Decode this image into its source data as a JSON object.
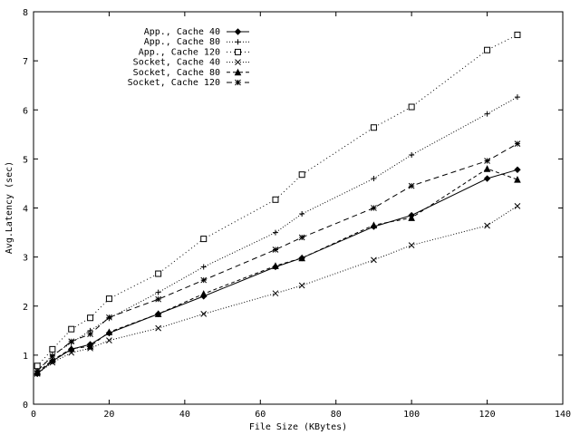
{
  "chart_data": {
    "type": "line",
    "title": "",
    "xlabel": "File Size (KBytes)",
    "ylabel": "Avg.Latency (sec)",
    "xlim": [
      0,
      140
    ],
    "ylim": [
      0,
      8
    ],
    "xticks": [
      0,
      20,
      40,
      60,
      80,
      100,
      120,
      140
    ],
    "yticks": [
      0,
      1,
      2,
      3,
      4,
      5,
      6,
      7,
      8
    ],
    "grid": false,
    "legend_position": "top-left",
    "series": [
      {
        "name": "App., Cache 40",
        "marker": "diamond",
        "dash": "solid",
        "x": [
          1,
          5,
          10,
          15,
          20,
          33,
          45,
          64,
          71,
          90,
          100,
          120,
          128
        ],
        "y": [
          0.62,
          0.88,
          1.12,
          1.22,
          1.45,
          1.84,
          2.2,
          2.8,
          2.98,
          3.62,
          3.85,
          4.6,
          4.78
        ]
      },
      {
        "name": "App., Cache 80",
        "marker": "plus",
        "dash": "dotted",
        "x": [
          1,
          5,
          10,
          15,
          20,
          33,
          45,
          64,
          71,
          90,
          100,
          120,
          128
        ],
        "y": [
          0.68,
          1.0,
          1.25,
          1.5,
          1.75,
          2.28,
          2.8,
          3.5,
          3.88,
          4.6,
          5.08,
          5.92,
          6.26
        ]
      },
      {
        "name": "App., Cache 120",
        "marker": "square",
        "dash": "dotted-fine",
        "x": [
          1,
          5,
          10,
          15,
          20,
          33,
          45,
          64,
          71,
          90,
          100,
          120,
          128
        ],
        "y": [
          0.78,
          1.12,
          1.53,
          1.76,
          2.15,
          2.66,
          3.37,
          4.17,
          4.68,
          5.64,
          6.06,
          7.22,
          7.53
        ]
      },
      {
        "name": "Socket, Cache 40",
        "marker": "cross",
        "dash": "dotted",
        "x": [
          1,
          5,
          10,
          15,
          20,
          33,
          45,
          64,
          71,
          90,
          100,
          120,
          128
        ],
        "y": [
          0.62,
          0.85,
          1.05,
          1.14,
          1.3,
          1.55,
          1.84,
          2.26,
          2.42,
          2.94,
          3.24,
          3.64,
          4.04
        ]
      },
      {
        "name": "Socket, Cache 80",
        "marker": "triangle",
        "dash": "dashed",
        "x": [
          1,
          5,
          10,
          15,
          20,
          33,
          45,
          64,
          71,
          90,
          100,
          120,
          128
        ],
        "y": [
          0.65,
          0.9,
          1.13,
          1.18,
          1.47,
          1.84,
          2.25,
          2.82,
          2.98,
          3.65,
          3.8,
          4.8,
          4.58
        ]
      },
      {
        "name": "Socket, Cache 120",
        "marker": "asterisk",
        "dash": "dash-long",
        "x": [
          1,
          5,
          10,
          15,
          20,
          33,
          45,
          64,
          71,
          90,
          100,
          120,
          128
        ],
        "y": [
          0.68,
          0.98,
          1.28,
          1.43,
          1.77,
          2.14,
          2.53,
          3.15,
          3.4,
          4.0,
          4.45,
          4.96,
          5.31
        ]
      }
    ]
  }
}
